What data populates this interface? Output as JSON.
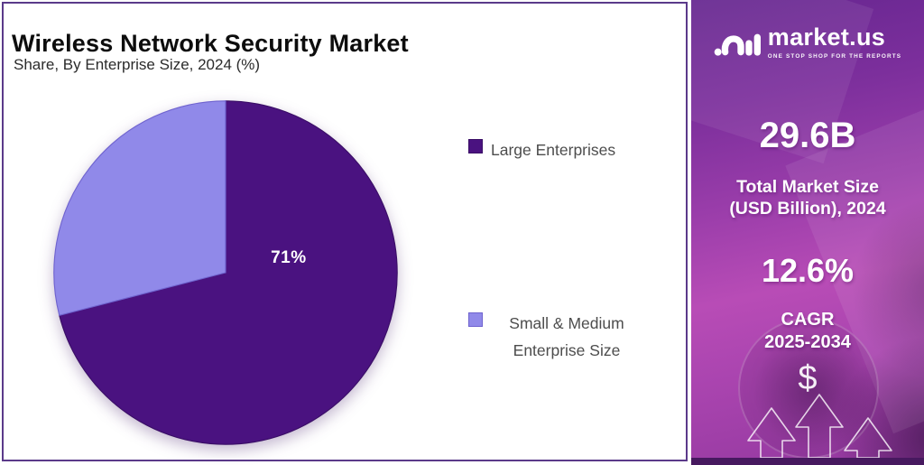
{
  "chart_data": {
    "type": "pie",
    "title": "Wireless Network Security Market",
    "subtitle": "Share, By Enterprise Size, 2024 (%)",
    "unit": "%",
    "legend_position": "right",
    "labeled_slice_index": 0,
    "slices": [
      {
        "label": "Large Enterprises",
        "value": 71,
        "color": "#4a1280",
        "border": "#3a0e66"
      },
      {
        "label": "Small & Medium Enterprise Size",
        "value": 29,
        "color": "#9089e9",
        "border": "#6f63cf"
      }
    ]
  },
  "sidebar": {
    "brand": {
      "name": "market.us",
      "tagline": "ONE STOP SHOP FOR THE REPORTS",
      "logo_icon": "market-us-swirl"
    },
    "market_size": {
      "value": "29.6B",
      "label_line1": "Total Market Size",
      "label_line2": "(USD Billion), 2024"
    },
    "cagr": {
      "value": "12.6%",
      "label_line1": "CAGR",
      "label_line2": "2025-2034"
    },
    "dollar_symbol": "$",
    "colors": {
      "gradient_top": "#662690",
      "gradient_mid": "#b84cb6",
      "gradient_bottom": "#93389f",
      "bottom_bar": "#47195f"
    }
  },
  "panel": {
    "border_color": "#5b3a8a",
    "background": "#ffffff"
  }
}
